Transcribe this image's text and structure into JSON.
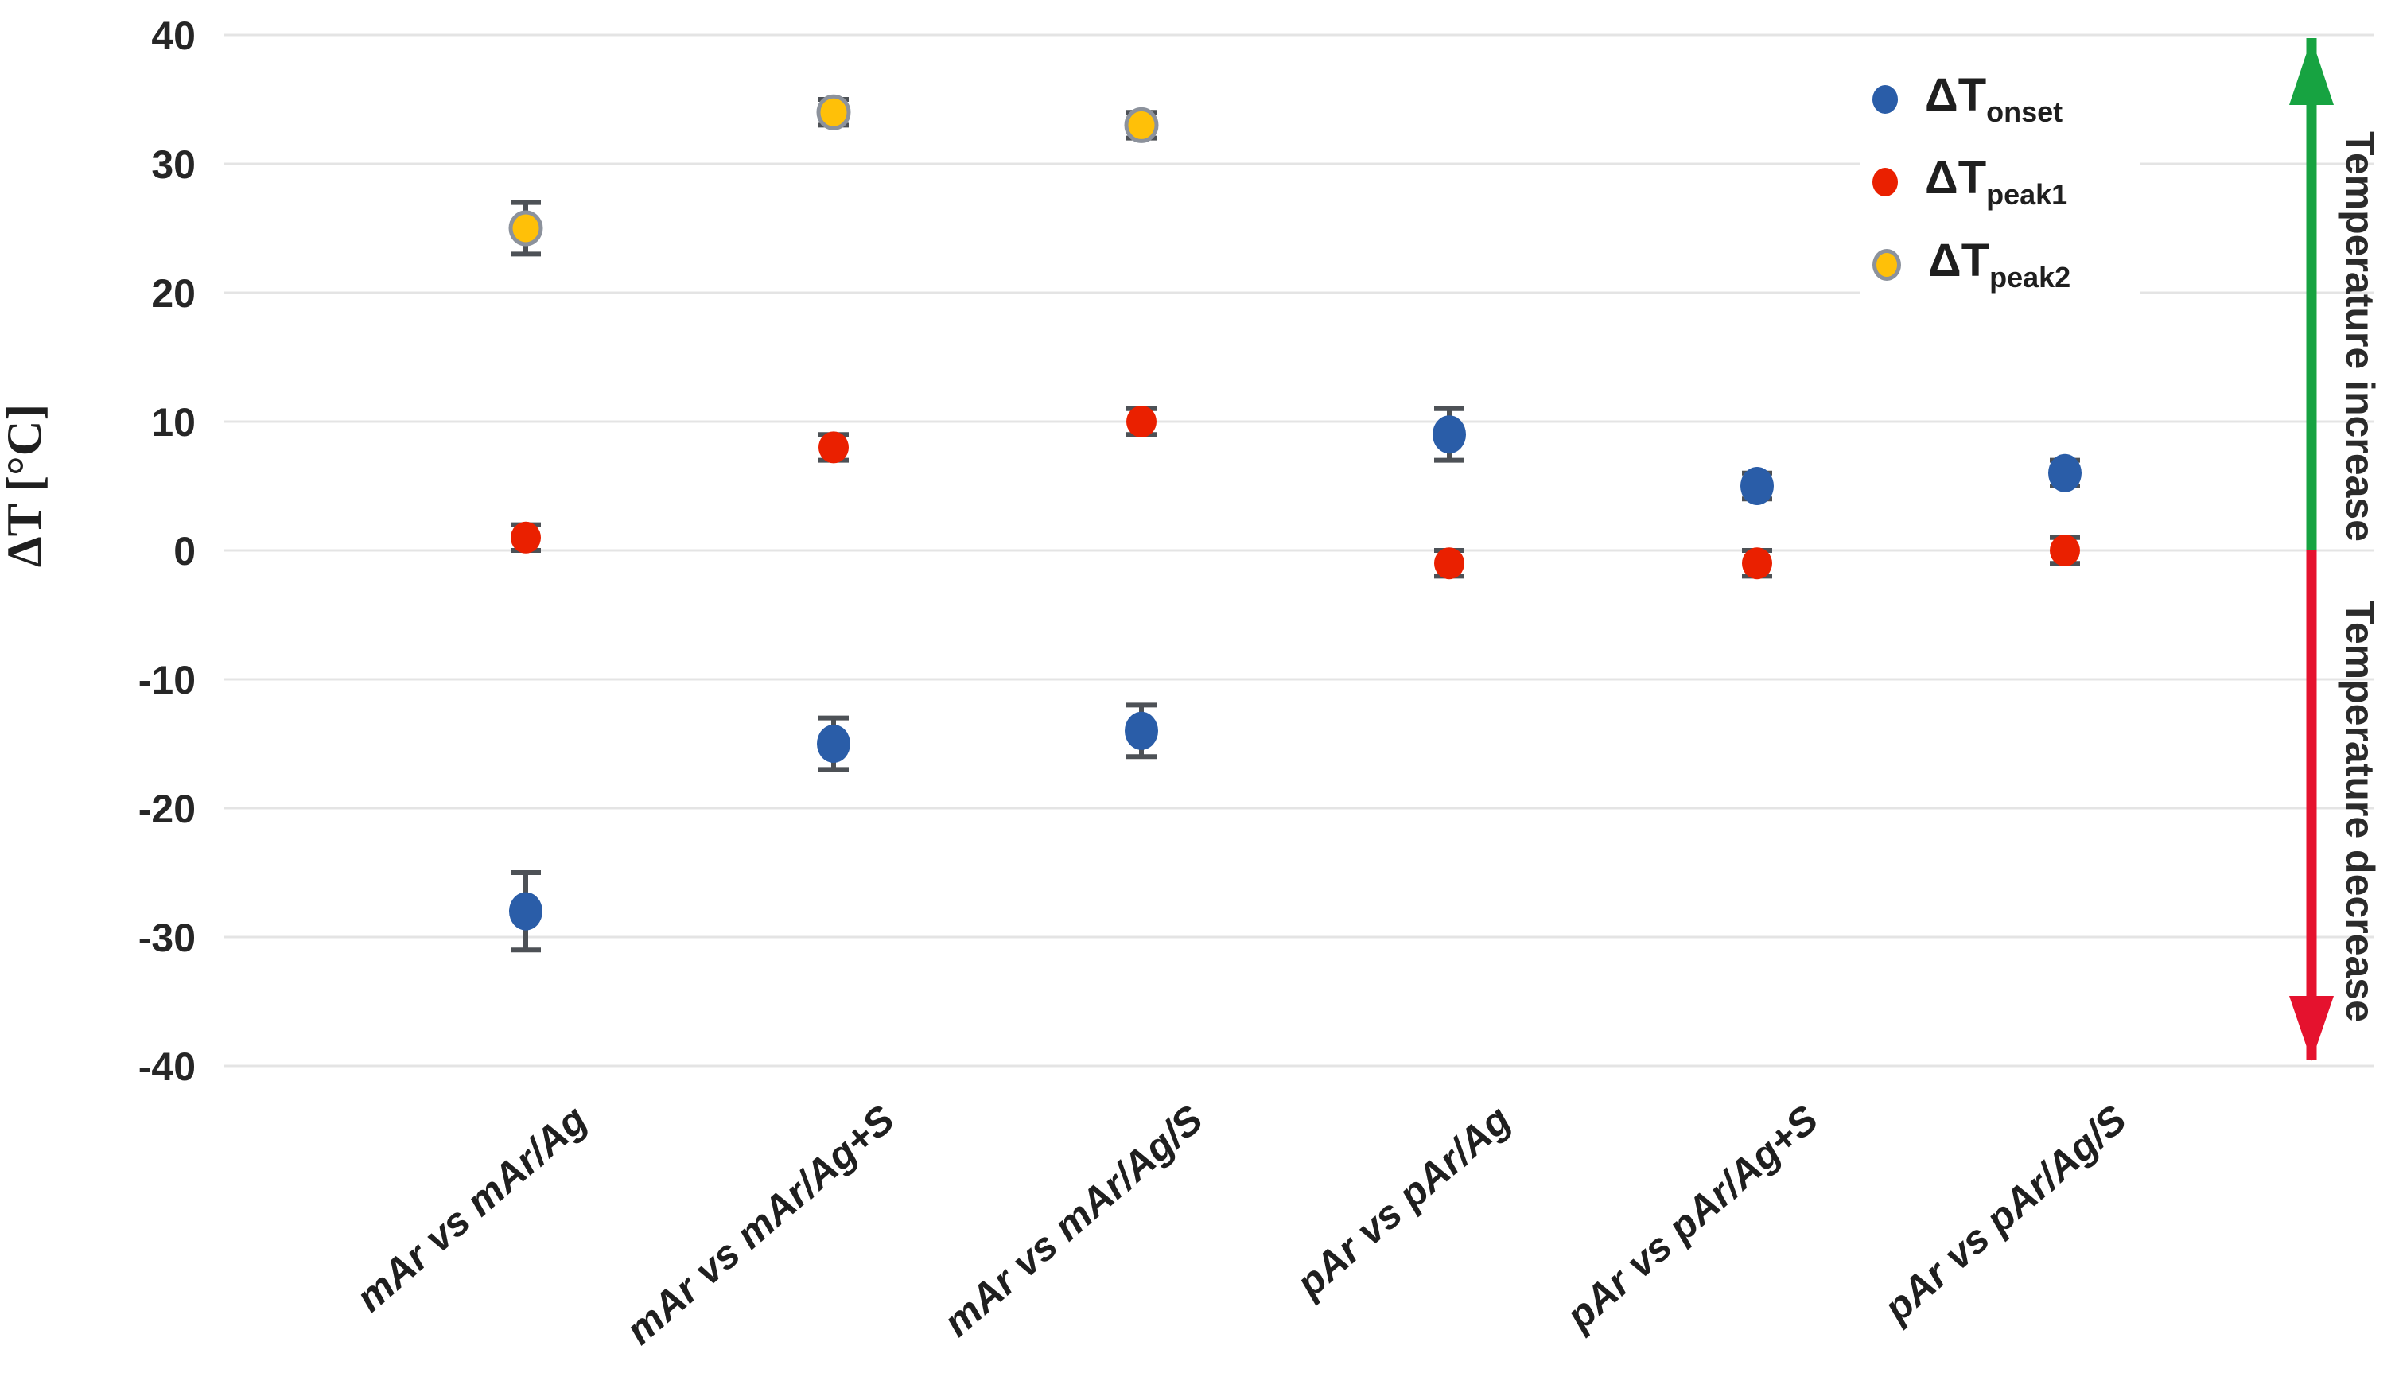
{
  "chart_data": {
    "type": "scatter",
    "title": "",
    "ylabel": "ΔT [°C]",
    "ylim": [
      -40,
      40
    ],
    "yticks": [
      40,
      30,
      20,
      10,
      0,
      -10,
      -20,
      -30,
      -40
    ],
    "grid": "horizontal",
    "legend_position": "top-right",
    "categories": [
      "mAr vs mAr/Ag",
      "mAr vs mAr/Ag+S",
      "mAr vs mAr/Ag/S",
      "pAr vs pAr/Ag",
      "pAr vs pAr/Ag+S",
      "pAr vs pAr/Ag/S"
    ],
    "series": [
      {
        "key": "dt-onset",
        "label_base": "ΔT",
        "label_sub": "onset",
        "color": "#2a5da8",
        "outline": "",
        "values": [
          -28,
          -15,
          -14,
          9,
          5,
          6
        ],
        "errors": [
          3,
          2,
          2,
          2,
          1,
          1
        ]
      },
      {
        "key": "dt-peak1",
        "label_base": "ΔT",
        "label_sub": "peak1",
        "color": "#ea2000",
        "outline": "",
        "values": [
          1,
          8,
          10,
          -1,
          -1,
          0
        ],
        "errors": [
          1,
          1,
          1,
          1,
          1,
          1
        ]
      },
      {
        "key": "dt-peak2",
        "label_base": "ΔT",
        "label_sub": "peak2",
        "color": "#ffc008",
        "outline": "#8c929c",
        "values": [
          25,
          34,
          33,
          null,
          null,
          null
        ],
        "errors": [
          2,
          1,
          1,
          null,
          null,
          null
        ]
      }
    ],
    "annotations": {
      "increase": "Temperature increase",
      "decrease": "Temperature decrease"
    },
    "arrow_colors": {
      "increase": "#17a341",
      "decrease": "#e5122e"
    },
    "style_colors": {
      "gridline": "#e4e4e4",
      "error_bar": "#4d5156",
      "tick_text": "#262626"
    }
  }
}
